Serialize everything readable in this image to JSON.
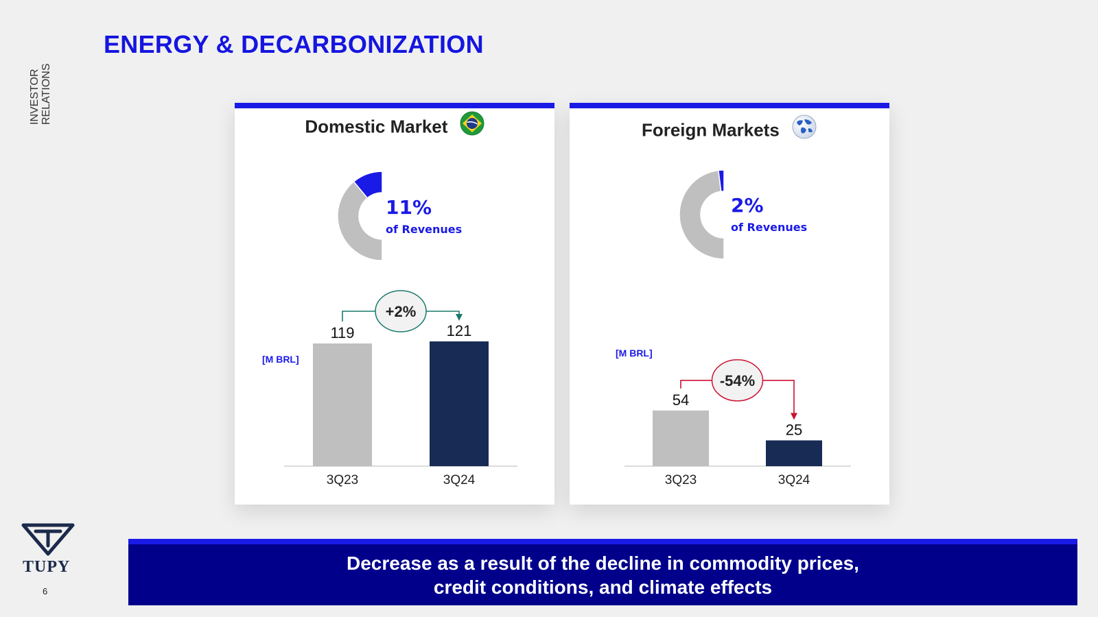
{
  "header": {
    "side_label": "INVESTOR RELATIONS",
    "title": "ENERGY & DECARBONIZATION"
  },
  "colors": {
    "accent_blue": "#1a1ae6",
    "navy": "#172b54",
    "gray": "#bfbfbf",
    "green_arrow": "#1a7a6a",
    "red_arrow": "#cc1133",
    "banner_bg": "#00008b"
  },
  "domestic": {
    "title": "Domestic Market",
    "flag_icon": "brazil-flag-icon",
    "share_pct": "11%",
    "share_label": "of Revenues",
    "share_value": 11,
    "unit_label": "[M BRL]",
    "change_label": "+2%"
  },
  "foreign": {
    "title": "Foreign Markets",
    "flag_icon": "globe-icon",
    "share_pct": "2%",
    "share_label": "of Revenues",
    "share_value": 2,
    "unit_label": "[M BRL]",
    "change_label": "-54%"
  },
  "chart_data": [
    {
      "type": "bar",
      "title": "Domestic Market",
      "categories": [
        "3Q23",
        "3Q24"
      ],
      "values": [
        119,
        121
      ],
      "value_labels": [
        "119",
        "121"
      ],
      "ylabel": "[M BRL]",
      "colors": [
        "#bfbfbf",
        "#172b54"
      ],
      "annotation": "+2%"
    },
    {
      "type": "bar",
      "title": "Foreign Markets",
      "categories": [
        "3Q23",
        "3Q24"
      ],
      "values": [
        54,
        25
      ],
      "value_labels": [
        "54",
        "25"
      ],
      "ylabel": "[M BRL]",
      "colors": [
        "#bfbfbf",
        "#172b54"
      ],
      "annotation": "-54%"
    }
  ],
  "banner": {
    "line1": "Decrease as a result of the decline in commodity prices,",
    "line2": "credit conditions, and climate effects"
  },
  "footer": {
    "logo_text": "TUPY",
    "page_number": "6"
  }
}
